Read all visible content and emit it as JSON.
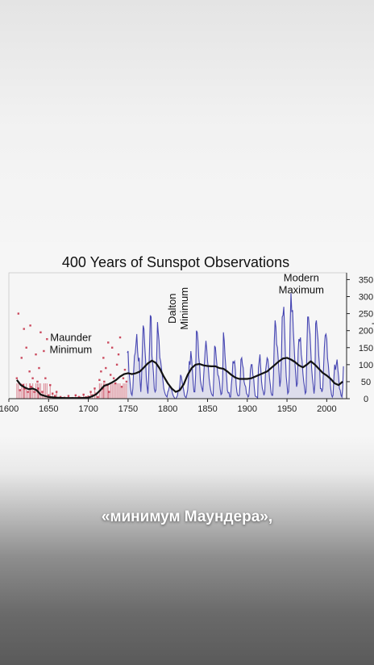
{
  "chart_data": {
    "type": "line",
    "title": "400 Years of Sunspot Observations",
    "xlabel": "",
    "ylabel": "Sunspot Number",
    "xlim": [
      1600,
      2025
    ],
    "ylim": [
      0,
      370
    ],
    "x_ticks": [
      1600,
      1650,
      1700,
      1750,
      1800,
      1850,
      1900,
      1950,
      2000
    ],
    "y_ticks": [
      0,
      50,
      100,
      150,
      200,
      250,
      300,
      350
    ],
    "annotations": [
      {
        "lines": [
          "Maunder",
          "Minimum"
        ],
        "x": 1678,
        "y": 170
      },
      {
        "lines": [
          "Dalton",
          "Minimum"
        ],
        "x": 1810,
        "y": 265,
        "rotated": true
      },
      {
        "lines": [
          "Modern",
          "Maximum"
        ],
        "x": 1968,
        "y": 345
      }
    ],
    "colors": {
      "early_observations": "#c0203a",
      "monthly_series": "#2a2aa8",
      "smoothed": "#111111",
      "axis": "#222222"
    },
    "series": [
      {
        "style": "scatter",
        "color": "#c0203a",
        "x": [
          1610,
          1612,
          1614,
          1616,
          1618,
          1619,
          1620,
          1622,
          1624,
          1626,
          1627,
          1628,
          1630,
          1632,
          1634,
          1636,
          1637,
          1638,
          1640,
          1642,
          1644,
          1646,
          1648,
          1650,
          1652,
          1655,
          1658,
          1660,
          1665,
          1670,
          1675,
          1680,
          1684,
          1688,
          1690,
          1694,
          1697,
          1700,
          1703,
          1705,
          1708,
          1710,
          1712,
          1714,
          1716,
          1718,
          1719,
          1720,
          1722,
          1724,
          1725,
          1726,
          1728,
          1730,
          1732,
          1734,
          1736,
          1738,
          1740,
          1742,
          1744,
          1746,
          1748
        ],
        "y": [
          60,
          250,
          25,
          120,
          40,
          205,
          30,
          150,
          20,
          80,
          215,
          35,
          60,
          20,
          130,
          50,
          30,
          90,
          195,
          20,
          140,
          60,
          175,
          10,
          40,
          15,
          8,
          20,
          5,
          3,
          8,
          2,
          10,
          5,
          3,
          12,
          4,
          6,
          20,
          10,
          30,
          15,
          5,
          55,
          80,
          30,
          120,
          50,
          90,
          40,
          165,
          20,
          70,
          150,
          60,
          45,
          100,
          130,
          180,
          35,
          60,
          85,
          50
        ]
      },
      {
        "name": "",
        "style": "line",
        "color": "#2a2aa8",
        "x": [
          1749,
          1750,
          1751,
          1752,
          1753,
          1754,
          1755,
          1756,
          1757,
          1758,
          1759,
          1760,
          1761,
          1762,
          1763,
          1764,
          1765,
          1766,
          1767,
          1768,
          1769,
          1770,
          1771,
          1772,
          1773,
          1774,
          1775,
          1776,
          1777,
          1778,
          1779,
          1780,
          1781,
          1782,
          1783,
          1784,
          1785,
          1786,
          1787,
          1788,
          1789,
          1790,
          1791,
          1792,
          1793,
          1794,
          1795,
          1796,
          1797,
          1798,
          1799,
          1800,
          1801,
          1802,
          1803,
          1804,
          1805,
          1806,
          1807,
          1808,
          1809,
          1810,
          1811,
          1812,
          1813,
          1814,
          1815,
          1816,
          1817,
          1818,
          1819,
          1820,
          1821,
          1822,
          1823,
          1824,
          1825,
          1826,
          1827,
          1828,
          1829,
          1830,
          1831,
          1832,
          1833,
          1834,
          1835,
          1836,
          1837,
          1838,
          1839,
          1840,
          1841,
          1842,
          1843,
          1844,
          1845,
          1846,
          1847,
          1848,
          1849,
          1850,
          1851,
          1852,
          1853,
          1854,
          1855,
          1856,
          1857,
          1858,
          1859,
          1860,
          1861,
          1862,
          1863,
          1864,
          1865,
          1866,
          1867,
          1868,
          1869,
          1870,
          1871,
          1872,
          1873,
          1874,
          1875,
          1876,
          1877,
          1878,
          1879,
          1880,
          1881,
          1882,
          1883,
          1884,
          1885,
          1886,
          1887,
          1888,
          1889,
          1890,
          1891,
          1892,
          1893,
          1894,
          1895,
          1896,
          1897,
          1898,
          1899,
          1900,
          1901,
          1902,
          1903,
          1904,
          1905,
          1906,
          1907,
          1908,
          1909,
          1910,
          1911,
          1912,
          1913,
          1914,
          1915,
          1916,
          1917,
          1918,
          1919,
          1920,
          1921,
          1922,
          1923,
          1924,
          1925,
          1926,
          1927,
          1928,
          1929,
          1930,
          1931,
          1932,
          1933,
          1934,
          1935,
          1936,
          1937,
          1938,
          1939,
          1940,
          1941,
          1942,
          1943,
          1944,
          1945,
          1946,
          1947,
          1948,
          1949,
          1950,
          1951,
          1952,
          1953,
          1954,
          1955,
          1956,
          1957,
          1958,
          1959,
          1960,
          1961,
          1962,
          1963,
          1964,
          1965,
          1966,
          1967,
          1968,
          1969,
          1970,
          1971,
          1972,
          1973,
          1974,
          1975,
          1976,
          1977,
          1978,
          1979,
          1980,
          1981,
          1982,
          1983,
          1984,
          1985,
          1986,
          1987,
          1988,
          1989,
          1990,
          1991,
          1992,
          1993,
          1994,
          1995,
          1996,
          1997,
          1998,
          1999,
          2000,
          2001,
          2002,
          2003,
          2004,
          2005,
          2006,
          2007,
          2008,
          2009,
          2010,
          2011,
          2012,
          2013,
          2014,
          2015,
          2016,
          2017,
          2018,
          2019,
          2020,
          2021
        ],
        "y": [
          135,
          140,
          80,
          60,
          35,
          15,
          10,
          30,
          80,
          125,
          135,
          160,
          190,
          140,
          110,
          120,
          55,
          20,
          60,
          140,
          215,
          205,
          155,
          115,
          55,
          35,
          15,
          70,
          150,
          245,
          240,
          125,
          105,
          75,
          30,
          20,
          25,
          125,
          225,
          195,
          170,
          120,
          110,
          90,
          70,
          50,
          30,
          20,
          12,
          8,
          5,
          20,
          25,
          35,
          35,
          30,
          25,
          15,
          8,
          4,
          0,
          0,
          4,
          8,
          22,
          22,
          38,
          70,
          65,
          50,
          38,
          25,
          10,
          5,
          3,
          12,
          25,
          55,
          110,
          100,
          140,
          115,
          85,
          45,
          20,
          20,
          70,
          200,
          195,
          170,
          120,
          100,
          55,
          40,
          30,
          20,
          60,
          100,
          140,
          170,
          145,
          110,
          90,
          60,
          40,
          25,
          15,
          10,
          8,
          75,
          155,
          150,
          120,
          95,
          70,
          65,
          50,
          28,
          12,
          15,
          55,
          195,
          170,
          125,
          95,
          65,
          25,
          17,
          18,
          5,
          5,
          40,
          65,
          110,
          105,
          110,
          85,
          40,
          20,
          10,
          8,
          10,
          45,
          115,
          120,
          100,
          90,
          50,
          40,
          35,
          15,
          12,
          5,
          8,
          40,
          85,
          100,
          100,
          70,
          60,
          30,
          8,
          6,
          5,
          2,
          90,
          110,
          130,
          90,
          50,
          30,
          22,
          10,
          20,
          80,
          100,
          120,
          115,
          90,
          60,
          40,
          18,
          10,
          10,
          70,
          170,
          230,
          210,
          160,
          150,
          115,
          75,
          35,
          55,
          125,
          240,
          245,
          270,
          205,
          125,
          65,
          40,
          15,
          20,
          70,
          220,
          310,
          255,
          260,
          200,
          155,
          105,
          70,
          35,
          45,
          140,
          175,
          170,
          180,
          130,
          110,
          75,
          50,
          35,
          15,
          20,
          150,
          240,
          240,
          210,
          190,
          140,
          90,
          60,
          40,
          15,
          40,
          220,
          230,
          200,
          175,
          125,
          95,
          30,
          30,
          20,
          30,
          90,
          150,
          185,
          190,
          175,
          120,
          100,
          70,
          60,
          30,
          12,
          5,
          10,
          60,
          100,
          85,
          100,
          115,
          85,
          65,
          30,
          25,
          10,
          5,
          30,
          95
        ]
      },
      {
        "name": "",
        "style": "smoothed",
        "color": "#111111",
        "x": [
          1610,
          1615,
          1620,
          1625,
          1630,
          1635,
          1640,
          1645,
          1650,
          1655,
          1660,
          1670,
          1680,
          1690,
          1700,
          1705,
          1710,
          1715,
          1720,
          1725,
          1730,
          1735,
          1740,
          1745,
          1750,
          1755,
          1760,
          1765,
          1770,
          1775,
          1780,
          1785,
          1790,
          1795,
          1800,
          1805,
          1810,
          1815,
          1820,
          1825,
          1830,
          1835,
          1840,
          1845,
          1850,
          1855,
          1860,
          1865,
          1870,
          1875,
          1880,
          1885,
          1890,
          1895,
          1900,
          1905,
          1910,
          1915,
          1920,
          1925,
          1930,
          1935,
          1940,
          1945,
          1950,
          1955,
          1960,
          1965,
          1970,
          1975,
          1980,
          1985,
          1990,
          1995,
          2000,
          2005,
          2010,
          2015,
          2020
        ],
        "y": [
          55,
          40,
          33,
          28,
          30,
          25,
          12,
          8,
          5,
          4,
          3,
          2,
          2,
          2,
          3,
          7,
          13,
          25,
          38,
          42,
          48,
          55,
          65,
          72,
          75,
          72,
          75,
          80,
          92,
          104,
          112,
          105,
          88,
          65,
          45,
          30,
          20,
          25,
          42,
          70,
          90,
          100,
          102,
          98,
          96,
          95,
          95,
          90,
          88,
          80,
          70,
          62,
          58,
          58,
          58,
          60,
          65,
          70,
          75,
          80,
          90,
          100,
          110,
          118,
          120,
          115,
          108,
          98,
          92,
          100,
          110,
          100,
          88,
          76,
          68,
          58,
          45,
          40,
          50
        ]
      }
    ]
  },
  "caption": "«минимум Маундера»,"
}
